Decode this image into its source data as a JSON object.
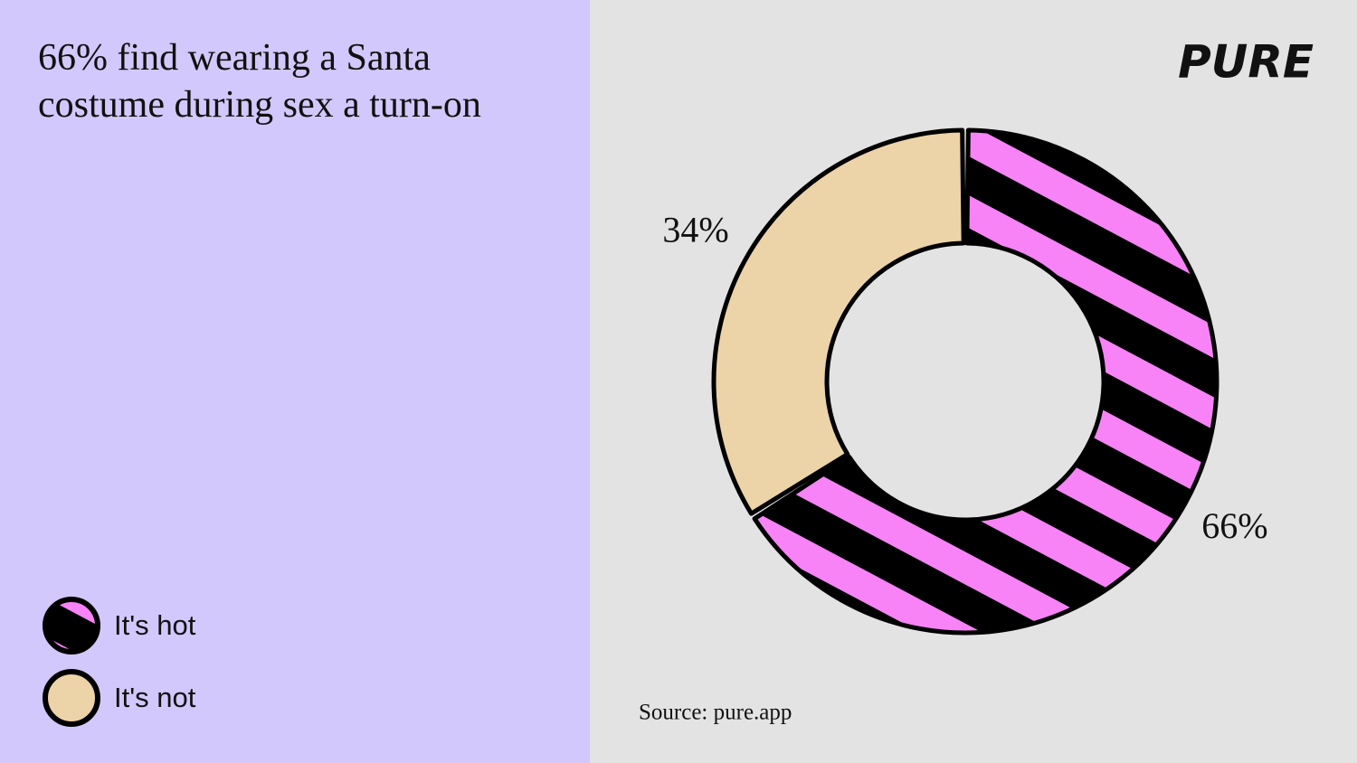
{
  "chart_data": {
    "type": "pie",
    "title": "66% find wearing a Santa costume during sex a turn-on",
    "categories": [
      "It's hot",
      "It's not"
    ],
    "values": [
      66,
      34
    ],
    "value_labels": [
      "66%",
      "34%"
    ],
    "colors": [
      "#f783f7",
      "#edd3a8"
    ],
    "source": "Source: pure.app",
    "brand": "PURE"
  }
}
